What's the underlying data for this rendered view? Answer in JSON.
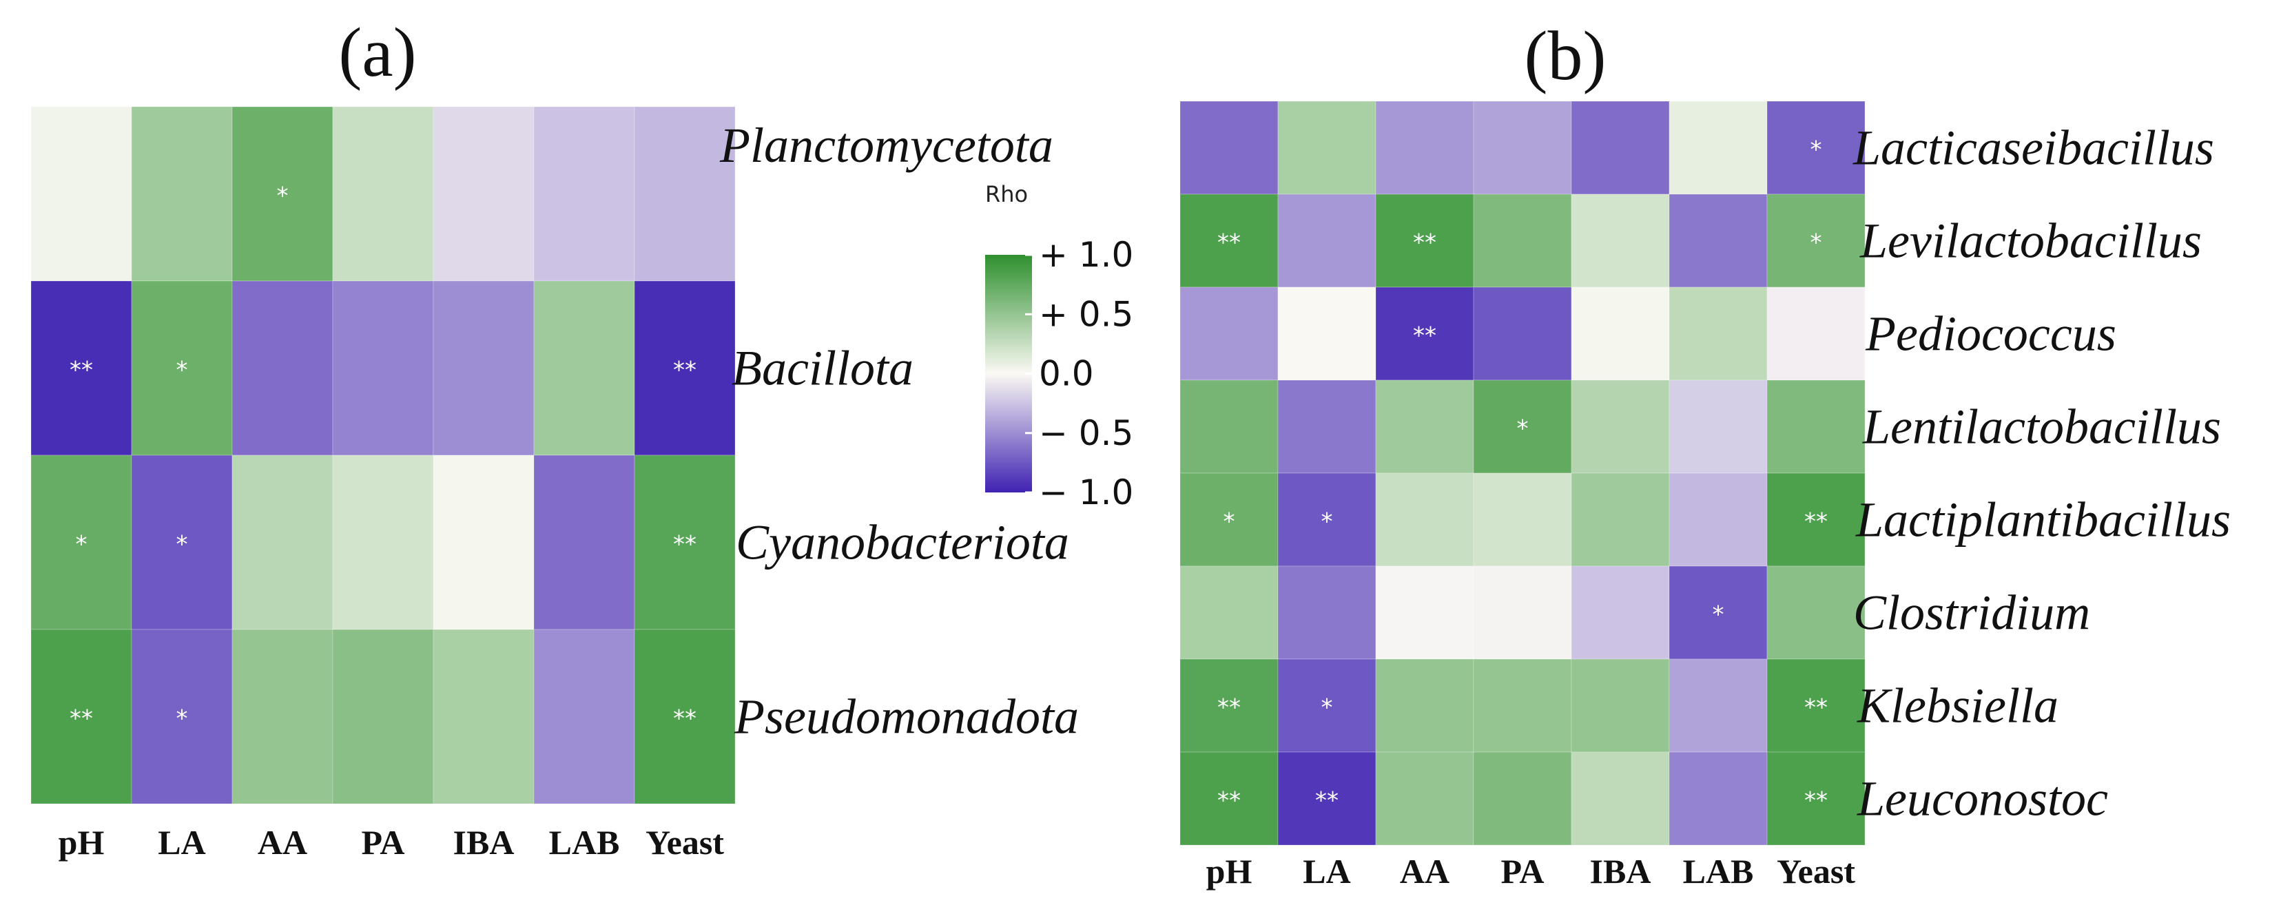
{
  "colors": {
    "negative": "#3f22b2",
    "neutral": "#fbf9f4",
    "positive": "#2e902e"
  },
  "legend": {
    "title": "Rho",
    "ticks": [
      {
        "label": "+ 1.0",
        "value": 1.0
      },
      {
        "label": "+ 0.5",
        "value": 0.5
      },
      {
        "label": "0.0",
        "value": 0.0
      },
      {
        "label": "− 0.5",
        "value": -0.5
      },
      {
        "label": "− 1.0",
        "value": -1.0
      }
    ]
  },
  "chart_data": [
    {
      "type": "heatmap",
      "title": "(a)",
      "columns": [
        "pH",
        "LA",
        "AA",
        "PA",
        "IBA",
        "LAB",
        "Yeast"
      ],
      "rows": [
        "Planctomycetota",
        "Bacillota",
        "Cyanobacteriota",
        "Pseudomonadota"
      ],
      "values": [
        [
          0.05,
          0.45,
          0.7,
          0.25,
          -0.15,
          -0.25,
          -0.3
        ],
        [
          -0.95,
          0.7,
          -0.65,
          -0.55,
          -0.5,
          0.45,
          -0.95
        ],
        [
          0.72,
          -0.75,
          0.32,
          0.2,
          0.03,
          -0.65,
          0.8
        ],
        [
          0.85,
          -0.7,
          0.5,
          0.55,
          0.4,
          -0.5,
          0.85
        ]
      ],
      "significance": [
        [
          "",
          "",
          "*",
          "",
          "",
          "",
          ""
        ],
        [
          "**",
          "*",
          "",
          "",
          "",
          "",
          "**"
        ],
        [
          "*",
          "*",
          "",
          "",
          "",
          "",
          "**"
        ],
        [
          "**",
          "*",
          "",
          "",
          "",
          "",
          "**"
        ]
      ],
      "range": [
        -1,
        1
      ]
    },
    {
      "type": "heatmap",
      "title": "(b)",
      "columns": [
        "pH",
        "LA",
        "AA",
        "PA",
        "IBA",
        "LAB",
        "Yeast"
      ],
      "rows": [
        "Lacticaseibacillus",
        "Levilactobacillus",
        "Pediococcus",
        "Lentilactobacillus",
        "Lactiplantibacillus",
        "Clostridium",
        "Klebsiella",
        "Leuconostoc"
      ],
      "values": [
        [
          -0.65,
          0.4,
          -0.45,
          -0.4,
          -0.65,
          0.1,
          -0.7
        ],
        [
          0.85,
          -0.45,
          0.85,
          0.6,
          0.2,
          -0.6,
          0.65
        ],
        [
          -0.45,
          0.01,
          -0.9,
          -0.75,
          0.03,
          0.3,
          -0.05
        ],
        [
          0.65,
          -0.6,
          0.45,
          0.75,
          0.35,
          -0.2,
          0.6
        ],
        [
          0.7,
          -0.75,
          0.25,
          0.2,
          0.45,
          -0.3,
          0.85
        ],
        [
          0.4,
          -0.6,
          -0.02,
          -0.03,
          -0.25,
          -0.75,
          0.55
        ],
        [
          0.8,
          -0.75,
          0.5,
          0.5,
          0.5,
          -0.4,
          0.85
        ],
        [
          0.85,
          -0.9,
          0.5,
          0.6,
          0.3,
          -0.55,
          0.85
        ]
      ],
      "significance": [
        [
          "",
          "",
          "",
          "",
          "",
          "",
          "*"
        ],
        [
          "**",
          "",
          "**",
          "",
          "",
          "",
          "*"
        ],
        [
          "",
          "",
          "**",
          "",
          "",
          "",
          ""
        ],
        [
          "",
          "",
          "",
          "*",
          "",
          "",
          ""
        ],
        [
          "*",
          "*",
          "",
          "",
          "",
          "",
          "**"
        ],
        [
          "",
          "",
          "",
          "",
          "",
          "*",
          ""
        ],
        [
          "**",
          "*",
          "",
          "",
          "",
          "",
          "**"
        ],
        [
          "**",
          "**",
          "",
          "",
          "",
          "",
          "**"
        ]
      ],
      "range": [
        -1,
        1
      ]
    }
  ]
}
